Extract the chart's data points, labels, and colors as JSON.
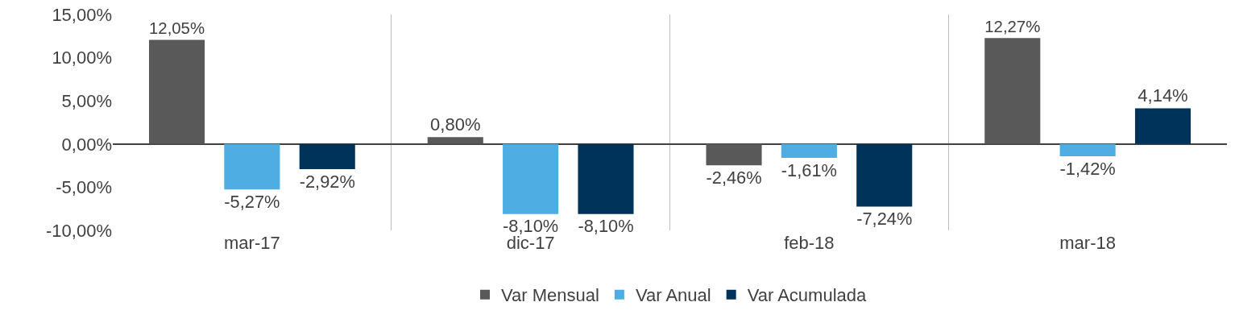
{
  "chart_data": {
    "type": "bar",
    "categories": [
      "mar-17",
      "dic-17",
      "feb-18",
      "mar-18"
    ],
    "series": [
      {
        "name": "Var Mensual",
        "color": "#595959",
        "values": [
          12.05,
          0.8,
          -2.46,
          12.27
        ],
        "value_labels": [
          "12,05%",
          "0,80%",
          "-2,46%",
          "12,27%"
        ]
      },
      {
        "name": "Var Anual",
        "color": "#4eaee3",
        "values": [
          -5.27,
          -8.1,
          -1.61,
          -1.42
        ],
        "value_labels": [
          "-5,27%",
          "-8,10%",
          "-1,61%",
          "-1,42%"
        ]
      },
      {
        "name": "Var Acumulada",
        "color": "#003359",
        "values": [
          -2.92,
          -8.1,
          -7.24,
          4.14
        ],
        "value_labels": [
          "-2,92%",
          "-8,10%",
          "-7,24%",
          "4,14%"
        ]
      }
    ],
    "ylim": [
      -10,
      15
    ],
    "yticks": [
      {
        "value": -10,
        "label": "-10,00%"
      },
      {
        "value": -5,
        "label": "-5,00%"
      },
      {
        "value": 0,
        "label": "0,00%"
      },
      {
        "value": 5,
        "label": "5,00%"
      },
      {
        "value": 10,
        "label": "10,00%"
      },
      {
        "value": 15,
        "label": "15,00%"
      }
    ],
    "grid": "x",
    "legend": "bottom"
  }
}
